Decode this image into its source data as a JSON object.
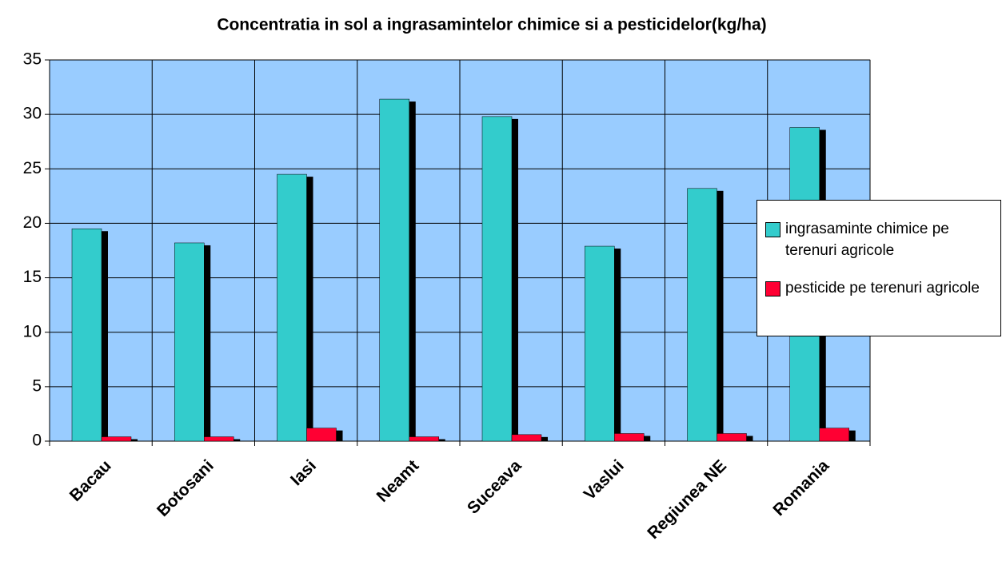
{
  "chart_data": {
    "type": "bar",
    "title": "Concentratia in sol a ingrasamintelor chimice si a pesticidelor(kg/ha)",
    "categories": [
      "Bacau",
      "Botosani",
      "Iasi",
      "Neamt",
      "Suceava",
      "Vaslui",
      "Regiunea NE",
      "Romania"
    ],
    "series": [
      {
        "name": "ingrasaminte chimice pe terenuri agricole",
        "color": "#33cccc",
        "values": [
          19.5,
          18.2,
          24.5,
          31.4,
          29.8,
          17.9,
          23.2,
          28.8
        ]
      },
      {
        "name": "pesticide pe terenuri agricole",
        "color": "#ff0033",
        "values": [
          0.4,
          0.4,
          1.2,
          0.4,
          0.6,
          0.7,
          0.7,
          1.2
        ]
      }
    ],
    "ylim": [
      0,
      35
    ],
    "yticks": [
      0,
      5,
      10,
      15,
      20,
      25,
      30,
      35
    ],
    "grid": true,
    "legend": "right"
  }
}
